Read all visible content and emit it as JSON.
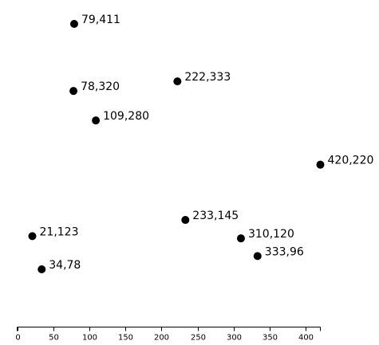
{
  "chart_data": {
    "type": "scatter",
    "title": "",
    "xlabel": "",
    "ylabel": "",
    "xlim": [
      0,
      420
    ],
    "ylim": [
      0,
      420
    ],
    "x_ticks": [
      0,
      50,
      100,
      150,
      200,
      250,
      300,
      350,
      400
    ],
    "y_axis_visible": false,
    "grid": false,
    "point_color": "#000000",
    "points": [
      {
        "x": 79,
        "y": 411,
        "label": "79,411"
      },
      {
        "x": 78,
        "y": 320,
        "label": "78,320"
      },
      {
        "x": 222,
        "y": 333,
        "label": "222,333"
      },
      {
        "x": 109,
        "y": 280,
        "label": "109,280"
      },
      {
        "x": 420,
        "y": 220,
        "label": "420,220"
      },
      {
        "x": 233,
        "y": 145,
        "label": "233,145"
      },
      {
        "x": 21,
        "y": 123,
        "label": "21,123"
      },
      {
        "x": 310,
        "y": 120,
        "label": "310,120"
      },
      {
        "x": 333,
        "y": 96,
        "label": "333,96"
      },
      {
        "x": 34,
        "y": 78,
        "label": "34,78"
      }
    ]
  }
}
